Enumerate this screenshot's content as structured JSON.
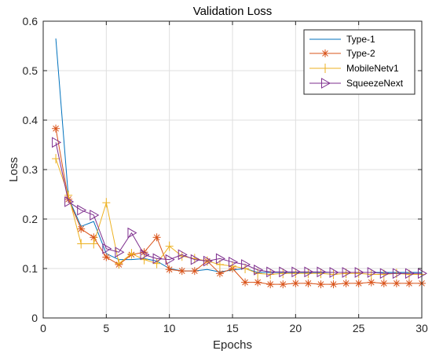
{
  "chart_data": {
    "type": "line",
    "title": "Validation Loss",
    "xlabel": "Epochs",
    "ylabel": "Loss",
    "xlim": [
      0,
      30
    ],
    "ylim": [
      0,
      0.6
    ],
    "xticks": [
      "0",
      "5",
      "10",
      "15",
      "20",
      "25",
      "30"
    ],
    "yticks": [
      "0",
      "0.1",
      "0.2",
      "0.3",
      "0.4",
      "0.5",
      "0.6"
    ],
    "grid": true,
    "legend_position": "top-right",
    "x": [
      1,
      2,
      3,
      4,
      5,
      6,
      7,
      8,
      9,
      10,
      11,
      12,
      13,
      14,
      15,
      16,
      17,
      18,
      19,
      20,
      21,
      22,
      23,
      24,
      25,
      26,
      27,
      28,
      29,
      30
    ],
    "series": [
      {
        "name": "Type-1",
        "color": "#0072BD",
        "marker": "none",
        "values": [
          0.565,
          0.243,
          0.185,
          0.195,
          0.13,
          0.118,
          0.118,
          0.12,
          0.115,
          0.1,
          0.095,
          0.095,
          0.098,
          0.093,
          0.097,
          0.1,
          0.092,
          0.092,
          0.092,
          0.092,
          0.092,
          0.092,
          0.092,
          0.092,
          0.092,
          0.092,
          0.092,
          0.092,
          0.092,
          0.092
        ]
      },
      {
        "name": "Type-2",
        "color": "#D95319",
        "marker": "star",
        "values": [
          0.383,
          0.24,
          0.18,
          0.163,
          0.123,
          0.108,
          0.128,
          0.133,
          0.163,
          0.098,
          0.095,
          0.095,
          0.115,
          0.09,
          0.1,
          0.072,
          0.072,
          0.068,
          0.068,
          0.07,
          0.07,
          0.068,
          0.068,
          0.07,
          0.07,
          0.072,
          0.07,
          0.07,
          0.07,
          0.07
        ]
      },
      {
        "name": "MobileNetv1",
        "color": "#EDB120",
        "marker": "plus",
        "values": [
          0.322,
          0.248,
          0.15,
          0.15,
          0.233,
          0.11,
          0.13,
          0.118,
          0.11,
          0.145,
          0.125,
          0.12,
          0.115,
          0.108,
          0.105,
          0.1,
          0.09,
          0.088,
          0.09,
          0.09,
          0.09,
          0.09,
          0.088,
          0.09,
          0.09,
          0.088,
          0.088,
          0.09,
          0.088,
          0.088
        ]
      },
      {
        "name": "SqueezeNext",
        "color": "#7E2F8E",
        "marker": "triangle-right",
        "values": [
          0.355,
          0.235,
          0.218,
          0.208,
          0.14,
          0.133,
          0.172,
          0.128,
          0.12,
          0.118,
          0.128,
          0.118,
          0.115,
          0.12,
          0.113,
          0.108,
          0.097,
          0.093,
          0.093,
          0.093,
          0.093,
          0.093,
          0.092,
          0.092,
          0.092,
          0.092,
          0.09,
          0.09,
          0.09,
          0.09
        ]
      }
    ]
  }
}
